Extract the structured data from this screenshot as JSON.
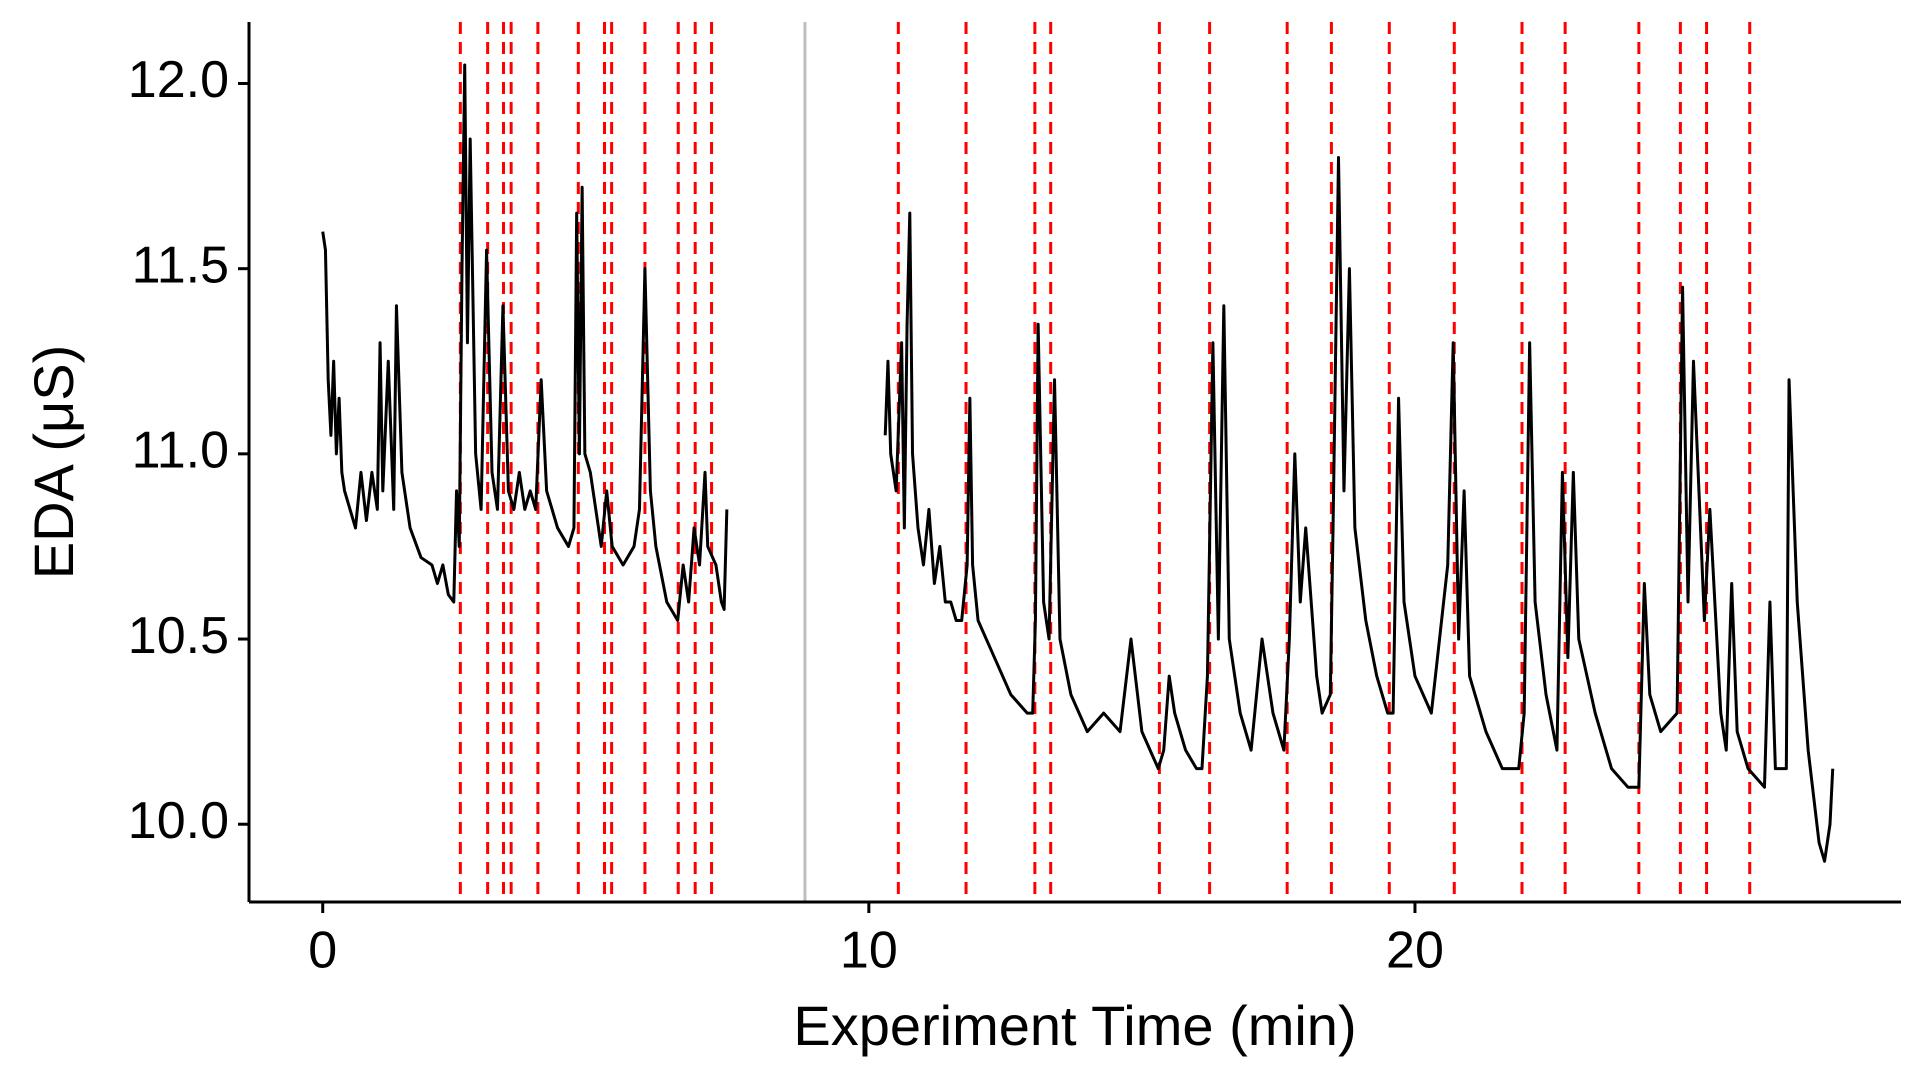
{
  "chart_data": {
    "type": "line",
    "x_label": "Experiment Time (min)",
    "y_label": "EDA (μS)",
    "xlim": [
      -1.35,
      28.9
    ],
    "ylim": [
      9.79,
      12.166
    ],
    "xticks": [
      0,
      10,
      20
    ],
    "yticks": [
      {
        "value": 10,
        "label": "10.0"
      },
      {
        "value": 10.5,
        "label": "10.5"
      },
      {
        "value": 11,
        "label": "11.0"
      },
      {
        "value": 11.5,
        "label": "11.5"
      },
      {
        "value": 12,
        "label": "12.0"
      }
    ],
    "grid": false,
    "x": [
      0,
      0.05,
      0.1,
      0.15,
      0.2,
      0.25,
      0.3,
      0.35,
      0.4,
      0.5,
      0.6,
      0.7,
      0.8,
      0.9,
      1.0,
      1.05,
      1.1,
      1.2,
      1.3,
      1.35,
      1.45,
      1.6,
      1.8,
      2.0,
      2.1,
      2.2,
      2.3,
      2.4,
      2.45,
      2.5,
      2.55,
      2.6,
      2.65,
      2.7,
      2.8,
      2.9,
      3.0,
      3.1,
      3.2,
      3.3,
      3.4,
      3.5,
      3.6,
      3.7,
      3.8,
      3.9,
      4.0,
      4.1,
      4.3,
      4.5,
      4.6,
      4.65,
      4.7,
      4.75,
      4.8,
      4.9,
      5.0,
      5.1,
      5.2,
      5.3,
      5.5,
      5.7,
      5.8,
      5.9,
      6.0,
      6.1,
      6.3,
      6.5,
      6.6,
      6.7,
      6.8,
      6.9,
      7.0,
      7.05,
      7.2,
      7.3,
      7.35,
      7.4,
      8.8,
      10.3,
      10.35,
      10.4,
      10.5,
      10.6,
      10.65,
      10.7,
      10.75,
      10.8,
      10.9,
      11.0,
      11.1,
      11.2,
      11.3,
      11.4,
      11.5,
      11.6,
      11.7,
      11.8,
      11.85,
      11.9,
      12.0,
      12.3,
      12.6,
      12.9,
      13.0,
      13.05,
      13.1,
      13.2,
      13.3,
      13.4,
      13.5,
      13.7,
      14.0,
      14.3,
      14.6,
      14.8,
      15.0,
      15.3,
      15.4,
      15.5,
      15.6,
      15.8,
      16.0,
      16.1,
      16.2,
      16.3,
      16.4,
      16.5,
      16.6,
      16.8,
      17.0,
      17.2,
      17.4,
      17.6,
      17.7,
      17.8,
      17.9,
      18.0,
      18.2,
      18.3,
      18.45,
      18.5,
      18.6,
      18.7,
      18.8,
      18.9,
      19.1,
      19.3,
      19.5,
      19.6,
      19.7,
      19.8,
      20.0,
      20.3,
      20.6,
      20.7,
      20.8,
      20.9,
      21.0,
      21.3,
      21.6,
      21.9,
      22.0,
      22.1,
      22.2,
      22.4,
      22.6,
      22.7,
      22.8,
      22.9,
      23.0,
      23.3,
      23.6,
      23.9,
      24.1,
      24.2,
      24.3,
      24.5,
      24.8,
      24.9,
      25.0,
      25.1,
      25.3,
      25.4,
      25.6,
      25.7,
      25.8,
      25.9,
      26.1,
      26.4,
      26.5,
      26.6,
      26.8,
      26.85,
      27.0,
      27.2,
      27.4,
      27.5,
      27.6,
      27.65
    ],
    "series": [
      {
        "color": "#000000",
        "values": [
          11.6,
          11.55,
          11.2,
          11.05,
          11.25,
          11.0,
          11.15,
          10.95,
          10.9,
          10.85,
          10.8,
          10.95,
          10.82,
          10.95,
          10.85,
          11.3,
          10.9,
          11.25,
          10.85,
          11.4,
          10.95,
          10.8,
          10.72,
          10.7,
          10.65,
          10.7,
          10.62,
          10.6,
          10.9,
          10.75,
          11.5,
          12.05,
          11.3,
          11.85,
          11.0,
          10.85,
          11.55,
          10.95,
          10.85,
          11.4,
          10.9,
          10.85,
          10.95,
          10.85,
          10.9,
          10.85,
          11.2,
          10.9,
          10.8,
          10.75,
          10.8,
          11.65,
          11.0,
          11.72,
          11.0,
          10.95,
          10.85,
          10.75,
          10.9,
          10.75,
          10.7,
          10.75,
          10.85,
          11.5,
          10.9,
          10.75,
          10.6,
          10.55,
          10.7,
          10.6,
          10.8,
          10.7,
          10.95,
          10.75,
          10.7,
          10.6,
          10.58,
          10.85,
          null,
          11.05,
          11.25,
          11.0,
          10.9,
          11.3,
          10.8,
          11.35,
          11.65,
          11.0,
          10.8,
          10.7,
          10.85,
          10.65,
          10.75,
          10.6,
          10.6,
          10.55,
          10.55,
          10.7,
          11.15,
          10.7,
          10.55,
          10.45,
          10.35,
          10.3,
          10.3,
          10.55,
          11.35,
          10.6,
          10.5,
          11.2,
          10.5,
          10.35,
          10.25,
          10.3,
          10.25,
          10.5,
          10.25,
          10.15,
          10.2,
          10.4,
          10.3,
          10.2,
          10.15,
          10.15,
          10.4,
          11.3,
          10.5,
          11.4,
          10.5,
          10.3,
          10.2,
          10.5,
          10.3,
          10.2,
          10.5,
          11.0,
          10.6,
          10.8,
          10.4,
          10.3,
          10.35,
          10.8,
          11.8,
          10.9,
          11.5,
          10.8,
          10.55,
          10.4,
          10.3,
          10.3,
          11.15,
          10.6,
          10.4,
          10.3,
          10.7,
          11.3,
          10.5,
          10.9,
          10.4,
          10.25,
          10.15,
          10.15,
          10.3,
          11.3,
          10.6,
          10.35,
          10.2,
          10.95,
          10.45,
          10.95,
          10.5,
          10.3,
          10.15,
          10.1,
          10.1,
          10.65,
          10.35,
          10.25,
          10.3,
          11.45,
          10.6,
          11.25,
          10.55,
          10.85,
          10.3,
          10.2,
          10.65,
          10.25,
          10.15,
          10.1,
          10.6,
          10.15,
          10.15,
          11.2,
          10.6,
          10.2,
          9.95,
          9.9,
          10.0,
          10.15
        ]
      }
    ],
    "event_lines": {
      "color": "#ff0000",
      "x": [
        2.52,
        3.02,
        3.31,
        3.45,
        3.94,
        4.68,
        5.16,
        5.29,
        5.9,
        6.51,
        6.82,
        7.12,
        10.54,
        11.78,
        13.04,
        13.33,
        15.32,
        16.24,
        17.66,
        18.47,
        19.53,
        20.72,
        21.96,
        22.75,
        24.1,
        24.86,
        25.34,
        26.13
      ]
    },
    "reference_line": {
      "color": "#bebebe",
      "x": 8.83
    }
  }
}
